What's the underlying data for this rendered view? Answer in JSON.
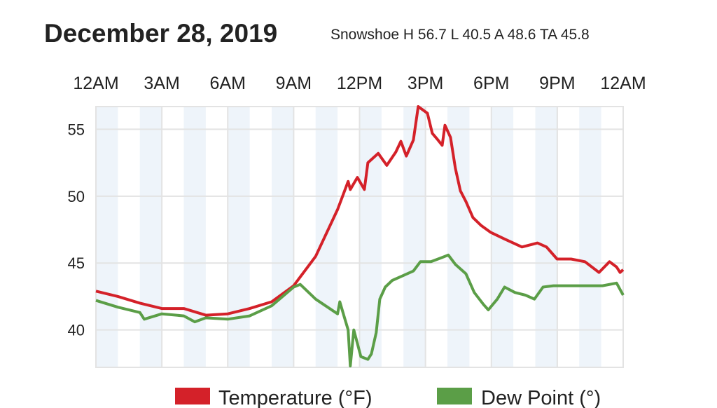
{
  "header": {
    "title": "December 28, 2019",
    "subtitle": "Snowshoe H 56.7 L 40.5 A 48.6 TA 45.8"
  },
  "chart_data": {
    "type": "line",
    "title": "December 28, 2019",
    "subtitle": "Snowshoe H 56.7 L 40.5 A 48.6 TA 45.8",
    "xlabel": "",
    "ylabel": "",
    "xlim": [
      0,
      24
    ],
    "ylim": [
      37.2,
      56.7
    ],
    "x_ticks": [
      0,
      3,
      6,
      9,
      12,
      15,
      18,
      21,
      24
    ],
    "x_tick_labels": [
      "12AM",
      "3AM",
      "6AM",
      "9AM",
      "12PM",
      "3PM",
      "6PM",
      "9PM",
      "12AM"
    ],
    "x_tick_position": "top",
    "y_ticks": [
      40,
      45,
      50,
      55
    ],
    "y_tick_labels": [
      "40",
      "45",
      "50",
      "55"
    ],
    "grid": true,
    "legend_position": "bottom",
    "series": [
      {
        "name": "Temperature (°F)",
        "color": "#d42129",
        "points": [
          [
            0,
            42.9
          ],
          [
            1,
            42.5
          ],
          [
            2,
            42.0
          ],
          [
            3,
            41.6
          ],
          [
            4,
            41.6
          ],
          [
            5,
            41.1
          ],
          [
            6,
            41.2
          ],
          [
            7,
            41.6
          ],
          [
            8,
            42.1
          ],
          [
            9,
            43.3
          ],
          [
            10,
            45.5
          ],
          [
            11,
            49.0
          ],
          [
            11.48,
            51.1
          ],
          [
            11.58,
            50.5
          ],
          [
            11.9,
            51.4
          ],
          [
            12.22,
            50.5
          ],
          [
            12.38,
            52.5
          ],
          [
            12.85,
            53.2
          ],
          [
            13.24,
            52.3
          ],
          [
            13.65,
            53.3
          ],
          [
            13.88,
            54.1
          ],
          [
            14.13,
            53.0
          ],
          [
            14.45,
            54.2
          ],
          [
            14.67,
            56.7
          ],
          [
            15.09,
            56.2
          ],
          [
            15.31,
            54.7
          ],
          [
            15.57,
            54.2
          ],
          [
            15.76,
            53.8
          ],
          [
            15.89,
            55.3
          ],
          [
            16.14,
            54.4
          ],
          [
            16.36,
            52.1
          ],
          [
            16.59,
            50.4
          ],
          [
            16.84,
            49.6
          ],
          [
            17.16,
            48.4
          ],
          [
            17.54,
            47.8
          ],
          [
            17.96,
            47.3
          ],
          [
            18.6,
            46.8
          ],
          [
            19.39,
            46.2
          ],
          [
            20.1,
            46.5
          ],
          [
            20.51,
            46.2
          ],
          [
            20.99,
            45.3
          ],
          [
            21.63,
            45.3
          ],
          [
            22.26,
            45.1
          ],
          [
            22.9,
            44.3
          ],
          [
            23.38,
            45.1
          ],
          [
            23.7,
            44.7
          ],
          [
            23.86,
            44.3
          ],
          [
            24,
            44.5
          ]
        ]
      },
      {
        "name": "Dew Point (°)",
        "color": "#5b9e47",
        "points": [
          [
            0,
            42.2
          ],
          [
            1,
            41.7
          ],
          [
            2,
            41.3
          ],
          [
            2.2,
            40.8
          ],
          [
            3,
            41.2
          ],
          [
            4,
            41.05
          ],
          [
            4.5,
            40.6
          ],
          [
            5,
            40.9
          ],
          [
            6,
            40.8
          ],
          [
            7,
            41.05
          ],
          [
            8,
            41.8
          ],
          [
            9,
            43.2
          ],
          [
            9.3,
            43.4
          ],
          [
            10,
            42.3
          ],
          [
            11,
            41.2
          ],
          [
            11.1,
            42.1
          ],
          [
            11.3,
            41.0
          ],
          [
            11.48,
            40.0
          ],
          [
            11.58,
            37.3
          ],
          [
            11.74,
            40.0
          ],
          [
            12.06,
            38.0
          ],
          [
            12.38,
            37.8
          ],
          [
            12.54,
            38.2
          ],
          [
            12.76,
            39.8
          ],
          [
            12.92,
            42.3
          ],
          [
            13.17,
            43.2
          ],
          [
            13.49,
            43.7
          ],
          [
            13.97,
            44.05
          ],
          [
            14.45,
            44.4
          ],
          [
            14.77,
            45.1
          ],
          [
            15.25,
            45.1
          ],
          [
            15.73,
            45.4
          ],
          [
            16.04,
            45.6
          ],
          [
            16.36,
            44.9
          ],
          [
            16.84,
            44.2
          ],
          [
            17.22,
            42.8
          ],
          [
            17.64,
            41.9
          ],
          [
            17.86,
            41.5
          ],
          [
            18.27,
            42.3
          ],
          [
            18.6,
            43.2
          ],
          [
            19.07,
            42.8
          ],
          [
            19.55,
            42.6
          ],
          [
            19.96,
            42.3
          ],
          [
            20.35,
            43.2
          ],
          [
            20.83,
            43.3
          ],
          [
            21.78,
            43.3
          ],
          [
            23.06,
            43.3
          ],
          [
            23.7,
            43.5
          ],
          [
            24,
            42.6
          ]
        ]
      }
    ]
  },
  "legend": {
    "items": [
      {
        "label": "Temperature (°F)",
        "color": "#d42129"
      },
      {
        "label": "Dew Point (°)",
        "color": "#5b9e47"
      }
    ]
  }
}
